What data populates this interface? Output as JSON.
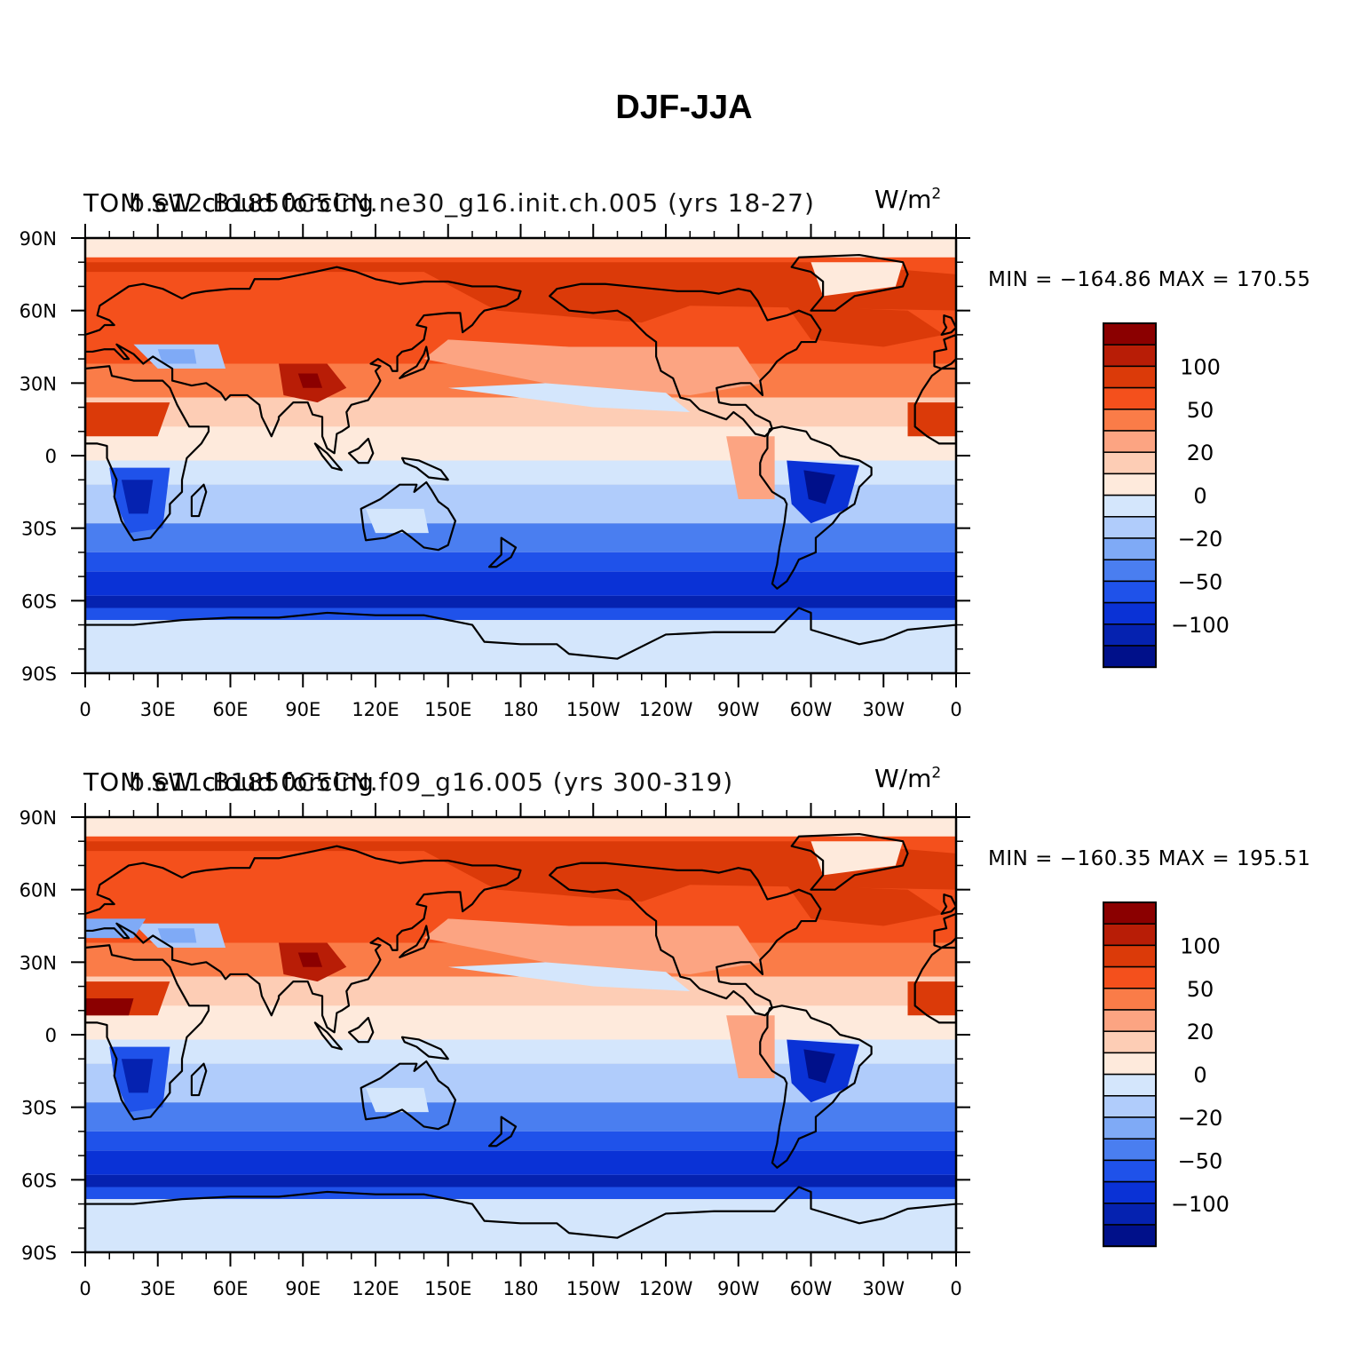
{
  "title": "DJF-JJA",
  "panels": [
    {
      "title_left": "TOM SW cloud forcing",
      "title_overlay": "b.e12.B1850C5CN.ne30_g16.init.ch.005 (yrs 18-27)",
      "unit": "W/m",
      "unit_exp": "2",
      "min": "−164.86",
      "max": "170.55",
      "minmax_text": "MIN = −164.86 MAX = 170.55"
    },
    {
      "title_left": "TOM SW cloud forcing",
      "title_overlay": "b.e11.B1850C5CN.f09_g16.005 (yrs 300-319)",
      "unit": "W/m",
      "unit_exp": "2",
      "min": "−160.35",
      "max": "195.51",
      "minmax_text": "MIN = −160.35 MAX = 195.51"
    }
  ],
  "map": {
    "lon_labels": [
      "0",
      "30E",
      "60E",
      "90E",
      "120E",
      "150E",
      "180",
      "150W",
      "120W",
      "90W",
      "60W",
      "30W",
      "0"
    ],
    "lat_labels": [
      "90N",
      "60N",
      "30N",
      "0",
      "30S",
      "60S",
      "90S"
    ]
  },
  "colorbar": {
    "labels": [
      "100",
      "50",
      "20",
      "0",
      "−20",
      "−50",
      "−100"
    ],
    "colors": [
      "#8b0000",
      "#b81d06",
      "#db3a09",
      "#f4501c",
      "#fa7c48",
      "#fca482",
      "#fdcdb5",
      "#feeadc",
      "#d4e6fc",
      "#b0ccfb",
      "#7faaf6",
      "#4a7ef0",
      "#1f52ea",
      "#0a32d6",
      "#0522b0",
      "#00108a"
    ]
  },
  "colors": {
    "land_line": "#000000"
  }
}
